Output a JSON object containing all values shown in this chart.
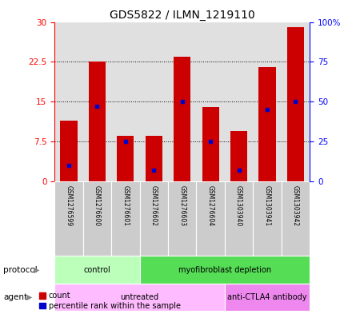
{
  "title": "GDS5822 / ILMN_1219110",
  "samples": [
    "GSM1276599",
    "GSM1276600",
    "GSM1276601",
    "GSM1276602",
    "GSM1276603",
    "GSM1276604",
    "GSM1303940",
    "GSM1303941",
    "GSM1303942"
  ],
  "counts": [
    11.5,
    22.5,
    8.5,
    8.5,
    23.5,
    14.0,
    9.5,
    21.5,
    29.0
  ],
  "percentiles": [
    10,
    47,
    25,
    7,
    50,
    25,
    7,
    45,
    50
  ],
  "ylim_left": [
    0,
    30
  ],
  "ylim_right": [
    0,
    100
  ],
  "yticks_left": [
    0,
    7.5,
    15,
    22.5,
    30
  ],
  "yticks_right": [
    0,
    25,
    50,
    75,
    100
  ],
  "ytick_labels_left": [
    "0",
    "7.5",
    "15",
    "22.5",
    "30"
  ],
  "ytick_labels_right": [
    "0",
    "25",
    "50",
    "75",
    "100%"
  ],
  "bar_color": "#cc0000",
  "dot_color": "#0000cc",
  "protocol_groups": [
    {
      "label": "control",
      "start": 0,
      "end": 3,
      "color": "#bbffbb"
    },
    {
      "label": "myofibroblast depletion",
      "start": 3,
      "end": 9,
      "color": "#55dd55"
    }
  ],
  "agent_groups": [
    {
      "label": "untreated",
      "start": 0,
      "end": 6,
      "color": "#ffbbff"
    },
    {
      "label": "anti-CTLA4 antibody",
      "start": 6,
      "end": 9,
      "color": "#ee88ee"
    }
  ],
  "protocol_label": "protocol",
  "agent_label": "agent",
  "legend_count": "count",
  "legend_percentile": "percentile rank within the sample",
  "background_color": "#ffffff",
  "plot_bg_color": "#e0e0e0",
  "sample_box_color": "#cccccc",
  "grid_color": "#000000"
}
